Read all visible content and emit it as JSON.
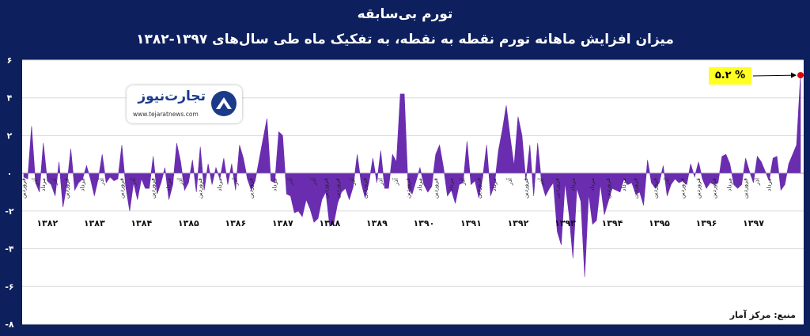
{
  "title": "تورم بی‌سابقه",
  "subtitle": "میزان افزایش ماهانه تورم نقطه به نقطه، به تفکیک ماه طی سال‌های ۱۳۹۷-۱۳۸۲",
  "source": "منبع: مرکز آمار",
  "logo": {
    "name": "تجارت‌نیوز",
    "url": "www.tejaratnews.com",
    "icon": "tejaratnews-logo-icon"
  },
  "callout": {
    "label": "% ۵.۲"
  },
  "colors": {
    "background": "#0d1f5c",
    "plot_bg": "#ffffff",
    "area": "#6a2db0",
    "grid": "#dcdcdc",
    "highlight": "#e00000",
    "callout_bg": "#ffff22"
  },
  "chart_data": {
    "type": "area",
    "title": "",
    "xlabel": "",
    "ylabel": "",
    "ylim": [
      -8,
      6
    ],
    "y_ticks": [
      "۶",
      "۴",
      "۲",
      "۰",
      "-۲",
      "-۴",
      "-۶",
      "-۸"
    ],
    "y_tick_values": [
      6,
      4,
      2,
      0,
      -2,
      -4,
      -6,
      -8
    ],
    "grid": true,
    "year_labels": [
      "۱۳۸۲",
      "۱۳۸۳",
      "۱۳۸۴",
      "۱۳۸۵",
      "۱۳۸۶",
      "۱۳۸۷",
      "۱۳۸۸",
      "۱۳۸۹",
      "۱۳۹۰",
      "۱۳۹۱",
      "۱۳۹۲",
      "۱۳۹۳",
      "۱۳۹۴",
      "۱۳۹۵",
      "۱۳۹۶",
      "۱۳۹۷"
    ],
    "month_labels": [
      {
        "month": 0,
        "text": "فروردین"
      },
      {
        "month": 3,
        "text": "آذر"
      },
      {
        "month": 5,
        "text": "مرداد"
      },
      {
        "month": 8,
        "text": "آذر"
      },
      {
        "month": 11,
        "text": "فروردین"
      },
      {
        "month": 15,
        "text": "مرداد"
      },
      {
        "month": 20,
        "text": "آذر"
      },
      {
        "month": 25,
        "text": "فروردین"
      },
      {
        "month": 28,
        "text": "آذر"
      },
      {
        "month": 33,
        "text": "فروردین"
      },
      {
        "month": 37,
        "text": "مرداد"
      },
      {
        "month": 40,
        "text": "آذر"
      },
      {
        "month": 45,
        "text": "فروردین"
      },
      {
        "month": 50,
        "text": "مرداد"
      },
      {
        "month": 54,
        "text": "آذر"
      },
      {
        "month": 58,
        "text": "فروردین"
      },
      {
        "month": 64,
        "text": "مرداد"
      },
      {
        "month": 68,
        "text": "آذر"
      },
      {
        "month": 74,
        "text": "آذر"
      },
      {
        "month": 77,
        "text": "فروردین"
      },
      {
        "month": 80,
        "text": "فروردین"
      },
      {
        "month": 84,
        "text": "آذر"
      },
      {
        "month": 87,
        "text": "فروردین"
      },
      {
        "month": 91,
        "text": "آذر"
      },
      {
        "month": 95,
        "text": "آذر"
      },
      {
        "month": 98,
        "text": "فروردین"
      },
      {
        "month": 101,
        "text": "مرداد"
      },
      {
        "month": 105,
        "text": "فروردین"
      },
      {
        "month": 109,
        "text": "مرداد"
      },
      {
        "month": 112,
        "text": "آذر"
      },
      {
        "month": 116,
        "text": "فروردین"
      },
      {
        "month": 120,
        "text": "مرداد"
      },
      {
        "month": 124,
        "text": "آذر"
      },
      {
        "month": 128,
        "text": "فروردین"
      },
      {
        "month": 132,
        "text": "آذر"
      },
      {
        "month": 136,
        "text": "فروردین"
      },
      {
        "month": 140,
        "text": "مرداد"
      },
      {
        "month": 145,
        "text": "مرداد"
      },
      {
        "month": 149,
        "text": "فروردین"
      },
      {
        "month": 153,
        "text": "مرداد"
      },
      {
        "month": 156,
        "text": "فروردین"
      },
      {
        "month": 161,
        "text": "فروردین"
      },
      {
        "month": 164,
        "text": "آذر"
      },
      {
        "month": 168,
        "text": "فروردین"
      },
      {
        "month": 172,
        "text": "فروردین"
      },
      {
        "month": 176,
        "text": "فروردین"
      },
      {
        "month": 180,
        "text": "مرداد"
      },
      {
        "month": 184,
        "text": "فروردین"
      },
      {
        "month": 187,
        "text": "آذر"
      },
      {
        "month": 190,
        "text": "مرداد"
      }
    ],
    "values": [
      -0.2,
      -0.3,
      2.5,
      -0.5,
      -1.0,
      1.6,
      -0.4,
      -0.6,
      -1.2,
      0.6,
      -1.8,
      -0.6,
      1.3,
      -0.9,
      -0.5,
      -0.3,
      0.4,
      -0.3,
      -1.2,
      -0.3,
      1.0,
      -0.5,
      -0.2,
      -0.4,
      -0.3,
      1.5,
      -0.7,
      -2.0,
      -0.5,
      -1.4,
      -0.3,
      -0.8,
      -0.8,
      0.9,
      -1.1,
      -0.5,
      0.3,
      -1.4,
      -0.6,
      1.6,
      0.6,
      -0.9,
      -0.5,
      0.7,
      -1.0,
      1.4,
      -0.9,
      0.5,
      -0.6,
      0.3,
      -0.3,
      0.8,
      -0.6,
      0.5,
      -0.9,
      1.5,
      0.8,
      -0.3,
      -0.9,
      -0.4,
      0.7,
      1.8,
      2.9,
      -0.4,
      -0.5,
      2.2,
      2.0,
      -1.1,
      -1.2,
      -2.1,
      -2.0,
      -2.3,
      -1.4,
      -1.9,
      -2.6,
      -2.4,
      -1.4,
      -1.0,
      -2.8,
      -2.7,
      -1.6,
      -1.0,
      -0.8,
      -1.4,
      -0.7,
      1.0,
      -0.5,
      -1.3,
      -0.5,
      0.8,
      -0.5,
      1.2,
      -0.8,
      -0.8,
      1.0,
      0.6,
      4.2,
      4.2,
      -0.8,
      -1.1,
      -0.4,
      0.3,
      -0.6,
      -1.0,
      -0.7,
      1.0,
      1.5,
      0.3,
      -1.2,
      -0.9,
      -1.6,
      -0.6,
      -0.5,
      1.7,
      -0.6,
      -0.4,
      -1.3,
      -0.2,
      1.5,
      -1.2,
      -0.6,
      1.2,
      2.3,
      3.6,
      1.9,
      0.4,
      3.0,
      2.0,
      -0.4,
      1.5,
      -1.2,
      1.6,
      -0.5,
      -1.2,
      -0.8,
      -0.5,
      -3.1,
      -3.8,
      -0.5,
      -2.2,
      -4.5,
      -0.8,
      -1.5,
      -5.5,
      -1.1,
      -2.7,
      -2.5,
      -0.6,
      -2.2,
      -1.5,
      -0.8,
      -0.9,
      -1.0,
      -0.3,
      -0.6,
      -0.5,
      -1.1,
      -1.0,
      -1.7,
      0.7,
      -0.5,
      -0.8,
      -0.5,
      0.4,
      -1.2,
      -0.6,
      -0.3,
      -0.5,
      -0.4,
      -0.6,
      0.5,
      -0.2,
      0.6,
      -0.3,
      -0.8,
      -0.5,
      -0.6,
      -0.5,
      0.9,
      1.0,
      0.5,
      -0.6,
      -0.8,
      -0.6,
      0.8,
      0.1,
      -0.5,
      0.9,
      0.6,
      0.1,
      -0.4,
      0.8,
      0.9,
      -0.9,
      -0.6,
      0.5,
      1.0,
      1.5,
      5.2
    ],
    "highlight_value": 5.2
  }
}
